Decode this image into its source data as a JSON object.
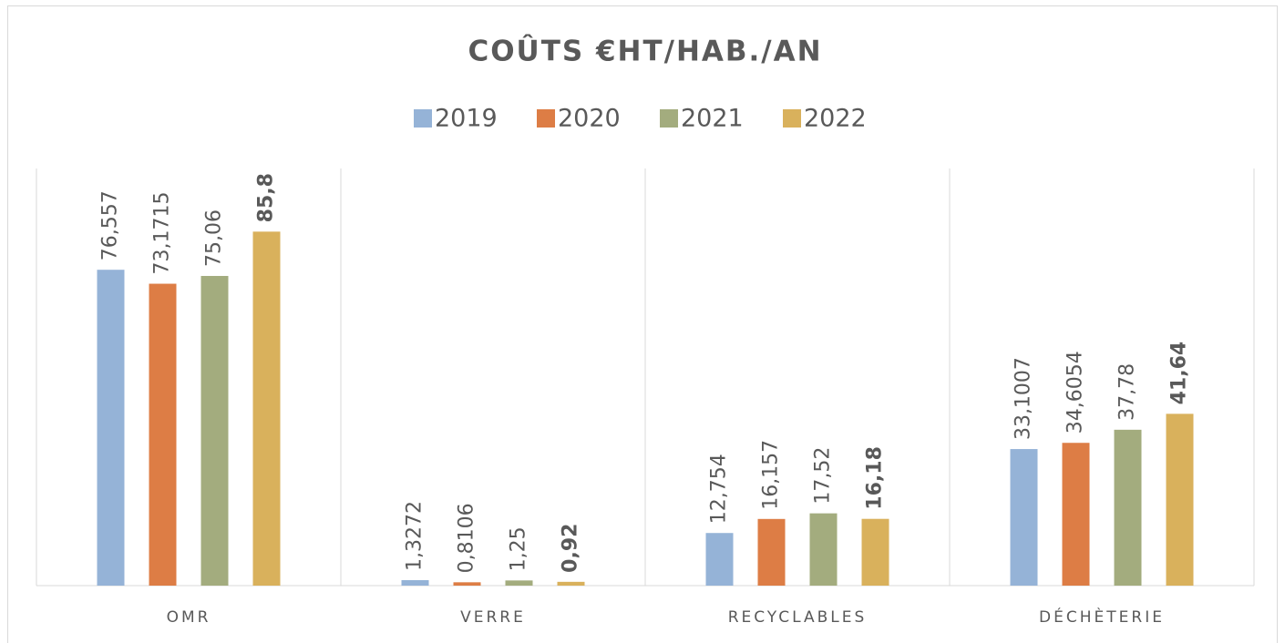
{
  "chart_data": {
    "type": "bar",
    "title": "COÛTS €HT/HAB./AN",
    "categories": [
      "OMR",
      "VERRE",
      "RECYCLABLES",
      "DÉCHÈTERIE"
    ],
    "series": [
      {
        "name": "2019",
        "color": "#95b3d7",
        "values": [
          76.557,
          1.3272,
          12.754,
          33.1007
        ],
        "value_labels": [
          "76,557",
          "1,3272",
          "12,754",
          "33,1007"
        ]
      },
      {
        "name": "2020",
        "color": "#dd7d45",
        "values": [
          73.1715,
          0.8106,
          16.157,
          34.6054
        ],
        "value_labels": [
          "73,1715",
          "0,8106",
          "16,157",
          "34,6054"
        ]
      },
      {
        "name": "2021",
        "color": "#a3ac7e",
        "values": [
          75.06,
          1.25,
          17.52,
          37.78
        ],
        "value_labels": [
          "75,06",
          "1,25",
          "17,52",
          "37,78"
        ]
      },
      {
        "name": "2022",
        "color": "#d9b15c",
        "values": [
          85.8,
          0.92,
          16.18,
          41.64
        ],
        "value_labels": [
          "85,8",
          "0,92",
          "16,18",
          "41,64"
        ],
        "bold_labels": true
      }
    ],
    "ylim": [
      0,
      100
    ],
    "legend": "top"
  }
}
